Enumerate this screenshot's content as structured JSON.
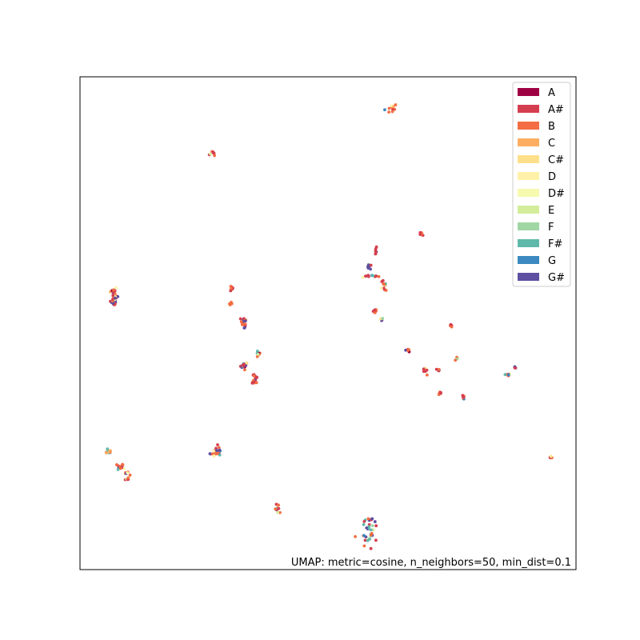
{
  "chart_data": {
    "type": "scatter",
    "title": "",
    "xlabel": "",
    "ylabel": "",
    "grid": false,
    "axes_ticks": false,
    "legend_placement": "top-right",
    "annotation": "UMAP: metric=cosine, n_neighbors=50, min_dist=0.1",
    "xlim": [
      0,
      100
    ],
    "ylim": [
      0,
      100
    ],
    "series": [
      {
        "name": "A",
        "color": "#9e0142"
      },
      {
        "name": "A#",
        "color": "#d53e4f"
      },
      {
        "name": "B",
        "color": "#f46d43"
      },
      {
        "name": "C",
        "color": "#fdae61"
      },
      {
        "name": "C#",
        "color": "#fee08b"
      },
      {
        "name": "D",
        "color": "#ffffbf"
      },
      {
        "name": "D#",
        "color": "#e6f598"
      },
      {
        "name": "E",
        "color": "#abdda4"
      },
      {
        "name": "F",
        "color": "#66c2a5"
      },
      {
        "name": "F#",
        "color": "#5ab4ac"
      },
      {
        "name": "G",
        "color": "#3288bd"
      },
      {
        "name": "G#",
        "color": "#5e4fa2"
      }
    ],
    "clusters": [
      {
        "x": 62.8,
        "y": 93.6,
        "spread": [
          1.2,
          1.0
        ],
        "count": 10,
        "dominant": [
          2,
          1
        ]
      },
      {
        "x": 26.8,
        "y": 84.6,
        "spread": [
          0.5,
          0.6
        ],
        "count": 8,
        "dominant": [
          2,
          1
        ]
      },
      {
        "x": 68.8,
        "y": 68.2,
        "spread": [
          0.4,
          0.4
        ],
        "count": 6,
        "dominant": [
          2,
          1
        ]
      },
      {
        "x": 6.8,
        "y": 55.2,
        "spread": [
          0.6,
          1.7
        ],
        "count": 40,
        "dominant": [
          1,
          11,
          2
        ]
      },
      {
        "x": 30.6,
        "y": 57.0,
        "spread": [
          0.3,
          0.4
        ],
        "count": 8,
        "dominant": [
          2,
          1
        ]
      },
      {
        "x": 30.3,
        "y": 54.0,
        "spread": [
          0.3,
          0.3
        ],
        "count": 6,
        "dominant": [
          2
        ]
      },
      {
        "x": 33.0,
        "y": 50.0,
        "spread": [
          0.5,
          1.5
        ],
        "count": 16,
        "dominant": [
          2,
          1,
          11
        ]
      },
      {
        "x": 36.0,
        "y": 43.8,
        "spread": [
          0.4,
          1.2
        ],
        "count": 8,
        "dominant": [
          2,
          3,
          9
        ]
      },
      {
        "x": 33.0,
        "y": 41.5,
        "spread": [
          0.8,
          0.5
        ],
        "count": 16,
        "dominant": [
          1,
          11,
          2
        ]
      },
      {
        "x": 35.3,
        "y": 39.2,
        "spread": [
          0.3,
          0.8
        ],
        "count": 10,
        "dominant": [
          2,
          1
        ]
      },
      {
        "x": 35.0,
        "y": 38.0,
        "spread": [
          0.6,
          0.3
        ],
        "count": 12,
        "dominant": [
          11,
          1,
          2
        ]
      },
      {
        "x": 58.2,
        "y": 61.5,
        "spread": [
          0.4,
          0.6
        ],
        "count": 8,
        "dominant": [
          1,
          11
        ]
      },
      {
        "x": 59.6,
        "y": 64.4,
        "spread": [
          0.3,
          0.7
        ],
        "count": 8,
        "dominant": [
          2,
          1
        ]
      },
      {
        "x": 58.8,
        "y": 59.6,
        "spread": [
          1.5,
          0.2
        ],
        "count": 12,
        "dominant": [
          2,
          1,
          9
        ]
      },
      {
        "x": 61.2,
        "y": 57.4,
        "spread": [
          0.4,
          1.3
        ],
        "count": 10,
        "dominant": [
          9,
          1,
          2
        ]
      },
      {
        "x": 59.4,
        "y": 52.6,
        "spread": [
          0.4,
          0.7
        ],
        "count": 10,
        "dominant": [
          2,
          1
        ]
      },
      {
        "x": 60.9,
        "y": 50.6,
        "spread": [
          0.2,
          0.3
        ],
        "count": 4,
        "dominant": [
          1,
          11
        ]
      },
      {
        "x": 74.9,
        "y": 49.4,
        "spread": [
          0.4,
          0.3
        ],
        "count": 6,
        "dominant": [
          2,
          1
        ]
      },
      {
        "x": 66.1,
        "y": 44.6,
        "spread": [
          0.5,
          0.5
        ],
        "count": 6,
        "dominant": [
          2,
          1
        ]
      },
      {
        "x": 69.6,
        "y": 40.2,
        "spread": [
          0.3,
          0.5
        ],
        "count": 6,
        "dominant": [
          2,
          1
        ]
      },
      {
        "x": 72.2,
        "y": 40.5,
        "spread": [
          0.5,
          0.2
        ],
        "count": 6,
        "dominant": [
          2,
          1,
          11
        ]
      },
      {
        "x": 76.0,
        "y": 42.8,
        "spread": [
          0.3,
          0.3
        ],
        "count": 4,
        "dominant": [
          2
        ]
      },
      {
        "x": 72.6,
        "y": 35.8,
        "spread": [
          0.3,
          0.4
        ],
        "count": 6,
        "dominant": [
          2,
          1
        ]
      },
      {
        "x": 77.4,
        "y": 35.0,
        "spread": [
          0.4,
          0.5
        ],
        "count": 8,
        "dominant": [
          2,
          1
        ]
      },
      {
        "x": 86.4,
        "y": 39.6,
        "spread": [
          0.6,
          0.4
        ],
        "count": 8,
        "dominant": [
          2,
          1
        ]
      },
      {
        "x": 87.8,
        "y": 41.0,
        "spread": [
          0.3,
          0.3
        ],
        "count": 4,
        "dominant": [
          1,
          11
        ]
      },
      {
        "x": 95.1,
        "y": 22.8,
        "spread": [
          0.4,
          0.4
        ],
        "count": 6,
        "dominant": [
          2,
          1
        ]
      },
      {
        "x": 5.6,
        "y": 23.8,
        "spread": [
          0.6,
          0.6
        ],
        "count": 10,
        "dominant": [
          3,
          9,
          2
        ]
      },
      {
        "x": 8.0,
        "y": 20.8,
        "spread": [
          0.8,
          0.6
        ],
        "count": 14,
        "dominant": [
          1,
          11,
          2
        ]
      },
      {
        "x": 9.6,
        "y": 19.6,
        "spread": [
          0.5,
          0.3
        ],
        "count": 6,
        "dominant": [
          2,
          11
        ]
      },
      {
        "x": 9.5,
        "y": 18.4,
        "spread": [
          0.4,
          0.3
        ],
        "count": 6,
        "dominant": [
          2,
          1
        ]
      },
      {
        "x": 27.6,
        "y": 24.0,
        "spread": [
          1.0,
          1.0
        ],
        "count": 24,
        "dominant": [
          1,
          11,
          2
        ]
      },
      {
        "x": 39.9,
        "y": 12.4,
        "spread": [
          0.4,
          1.0
        ],
        "count": 10,
        "dominant": [
          2,
          1,
          11
        ]
      },
      {
        "x": 58.6,
        "y": 8.0,
        "spread": [
          1.4,
          2.8
        ],
        "count": 34,
        "dominant": [
          1,
          11,
          2,
          9
        ]
      }
    ]
  },
  "legend": {
    "items": [
      "A",
      "A#",
      "B",
      "C",
      "C#",
      "D",
      "D#",
      "E",
      "F",
      "F#",
      "G",
      "G#"
    ],
    "colors": [
      "#9e0142",
      "#d53e4f",
      "#f46d43",
      "#fdae61",
      "#fee08b",
      "#fff2a8",
      "#f6faaf",
      "#d3ed9b",
      "#9fd6a4",
      "#5fb9ab",
      "#3b89c0",
      "#5e4fa2"
    ]
  }
}
